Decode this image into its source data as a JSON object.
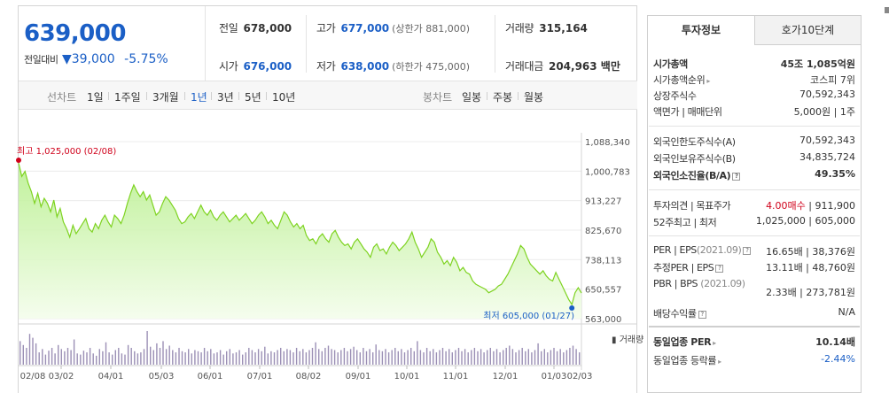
{
  "quote": {
    "price": "639,000",
    "change_label": "전일대비",
    "change_amount": "▼39,000",
    "change_rate": "-5.75%",
    "prev_close_label": "전일",
    "prev_close": "678,000",
    "high_label": "고가",
    "high": "677,000",
    "upper_limit": "(상한가 881,000)",
    "volume_label": "거래량",
    "volume": "315,164",
    "open_label": "시가",
    "open": "676,000",
    "low_label": "저가",
    "low": "638,000",
    "lower_limit": "(하한가 475,000)",
    "amount_label": "거래대금",
    "amount": "204,963 백만"
  },
  "period_bar": {
    "line_label": "선차트",
    "periods": [
      "1일",
      "1주일",
      "3개월",
      "1년",
      "3년",
      "5년",
      "10년"
    ],
    "active": "1년",
    "candle_label": "봉차트",
    "candles": [
      "일봉",
      "주봉",
      "월봉"
    ]
  },
  "chart_data": {
    "type": "area",
    "ylim": [
      563000,
      1088340
    ],
    "y_ticks": [
      "1,088,340",
      "1,000,783",
      "913,227",
      "825,670",
      "738,113",
      "650,557",
      "563,000"
    ],
    "x_ticks": [
      "02/08",
      "03/02",
      "04/01",
      "05/03",
      "06/01",
      "07/01",
      "08/02",
      "09/01",
      "10/01",
      "11/01",
      "12/01",
      "01/03",
      "02/03"
    ],
    "high_annotation": "최고 1,025,000 (02/08)",
    "low_annotation": "최저 605,000 (01/27)",
    "volume_label": "거래량",
    "series": [
      {
        "values": [
          1025000,
          985000,
          1000000,
          965000,
          940000,
          905000,
          935000,
          895000,
          920000,
          905000,
          880000,
          915000,
          865000,
          890000,
          850000,
          830000,
          805000,
          840000,
          815000,
          830000,
          845000,
          860000,
          830000,
          820000,
          845000,
          830000,
          855000,
          870000,
          850000,
          835000,
          870000,
          860000,
          845000,
          870000,
          905000,
          935000,
          960000,
          940000,
          925000,
          940000,
          915000,
          930000,
          900000,
          870000,
          880000,
          905000,
          925000,
          915000,
          900000,
          885000,
          860000,
          845000,
          850000,
          865000,
          875000,
          860000,
          880000,
          900000,
          880000,
          870000,
          885000,
          865000,
          855000,
          870000,
          880000,
          865000,
          850000,
          860000,
          870000,
          855000,
          865000,
          875000,
          860000,
          845000,
          855000,
          870000,
          880000,
          865000,
          845000,
          855000,
          840000,
          830000,
          855000,
          880000,
          870000,
          850000,
          835000,
          845000,
          830000,
          840000,
          810000,
          795000,
          800000,
          785000,
          805000,
          815000,
          800000,
          790000,
          815000,
          825000,
          805000,
          790000,
          780000,
          785000,
          770000,
          790000,
          800000,
          785000,
          770000,
          760000,
          745000,
          775000,
          785000,
          765000,
          770000,
          755000,
          775000,
          790000,
          780000,
          765000,
          775000,
          785000,
          800000,
          820000,
          790000,
          770000,
          745000,
          760000,
          775000,
          800000,
          790000,
          760000,
          745000,
          725000,
          735000,
          720000,
          745000,
          730000,
          705000,
          715000,
          700000,
          695000,
          675000,
          665000,
          660000,
          655000,
          650000,
          640000,
          645000,
          650000,
          660000,
          665000,
          680000,
          695000,
          715000,
          735000,
          755000,
          780000,
          770000,
          745000,
          725000,
          715000,
          705000,
          695000,
          705000,
          690000,
          680000,
          675000,
          700000,
          680000,
          660000,
          640000,
          620000,
          605000,
          640000,
          655000,
          639000
        ]
      }
    ],
    "volume": [
      42,
      35,
      30,
      55,
      48,
      38,
      22,
      28,
      18,
      25,
      30,
      20,
      35,
      28,
      24,
      30,
      26,
      45,
      20,
      18,
      25,
      22,
      30,
      20,
      16,
      28,
      24,
      40,
      22,
      18,
      26,
      30,
      20,
      18,
      35,
      30,
      24,
      20,
      22,
      28,
      60,
      32,
      26,
      38,
      30,
      42,
      28,
      34,
      26,
      22,
      30,
      24,
      22,
      28,
      20,
      26,
      24,
      22,
      30,
      24,
      28,
      20,
      22,
      26,
      18,
      24,
      28,
      20,
      22,
      26,
      18,
      22,
      30,
      26,
      22,
      28,
      24,
      32,
      20,
      24,
      22,
      26,
      30,
      24,
      28,
      26,
      22,
      30,
      24,
      28,
      22,
      26,
      30,
      40,
      28,
      24,
      30,
      34,
      28,
      26,
      22,
      26,
      30,
      24,
      28,
      32,
      26,
      22,
      30,
      24,
      28,
      22,
      36,
      26,
      24,
      28,
      22,
      26,
      30,
      24,
      28,
      22,
      26,
      30,
      24,
      42,
      26,
      22,
      30,
      24,
      28,
      22,
      26,
      30,
      24,
      28,
      22,
      26,
      30,
      24,
      28,
      22,
      26,
      30,
      24,
      28,
      22,
      26,
      30,
      24,
      28,
      22,
      26,
      30,
      34,
      28,
      22,
      26,
      30,
      24,
      28,
      22,
      26,
      38,
      24,
      28,
      22,
      26,
      30,
      24,
      28,
      22,
      26,
      30,
      34,
      28,
      22
    ]
  },
  "panel": {
    "tab_active": "투자정보",
    "tab_other": "호가10단계",
    "rows": {
      "market_cap_label": "시가총액",
      "market_cap": "45조 1,085억원",
      "market_cap_rank_label": "시가총액순위",
      "market_cap_rank": "코스피 7위",
      "shares_label": "상장주식수",
      "shares": "70,592,343",
      "face_label": "액면가 | 매매단위",
      "face": "5,000원 | 1주",
      "foreign_limit_label": "외국인한도주식수(A)",
      "foreign_limit": "70,592,343",
      "foreign_hold_label": "외국인보유주식수(B)",
      "foreign_hold": "34,835,724",
      "foreign_rate_label": "외국인소진율(B/A)",
      "foreign_rate": "49.35%",
      "opinion_label": "투자의견 | 목표주가",
      "opinion": "4.00매수",
      "target_price": "911,900",
      "w52_label": "52주최고 | 최저",
      "w52": "1,025,000 | 605,000",
      "per_label": "PER | EPS",
      "per_year": "(2021.09)",
      "per": "16.65배 | 38,376원",
      "est_per_label": "추정PER | EPS",
      "est_per": "13.11배 | 48,760원",
      "pbr_label": "PBR | BPS",
      "pbr_year": "(2021.09)",
      "pbr": "2.33배 | 273,781원",
      "div_label": "배당수익률",
      "div": "N/A",
      "sector_per_label": "동일업종 PER",
      "sector_per": "10.14배",
      "sector_chg_label": "동일업종 등락률",
      "sector_chg": "-2.44%"
    }
  },
  "colors": {
    "up": "#d0021b",
    "down": "#1b5fc6",
    "line": "#7ed321",
    "volume": "#9b8fb5"
  }
}
